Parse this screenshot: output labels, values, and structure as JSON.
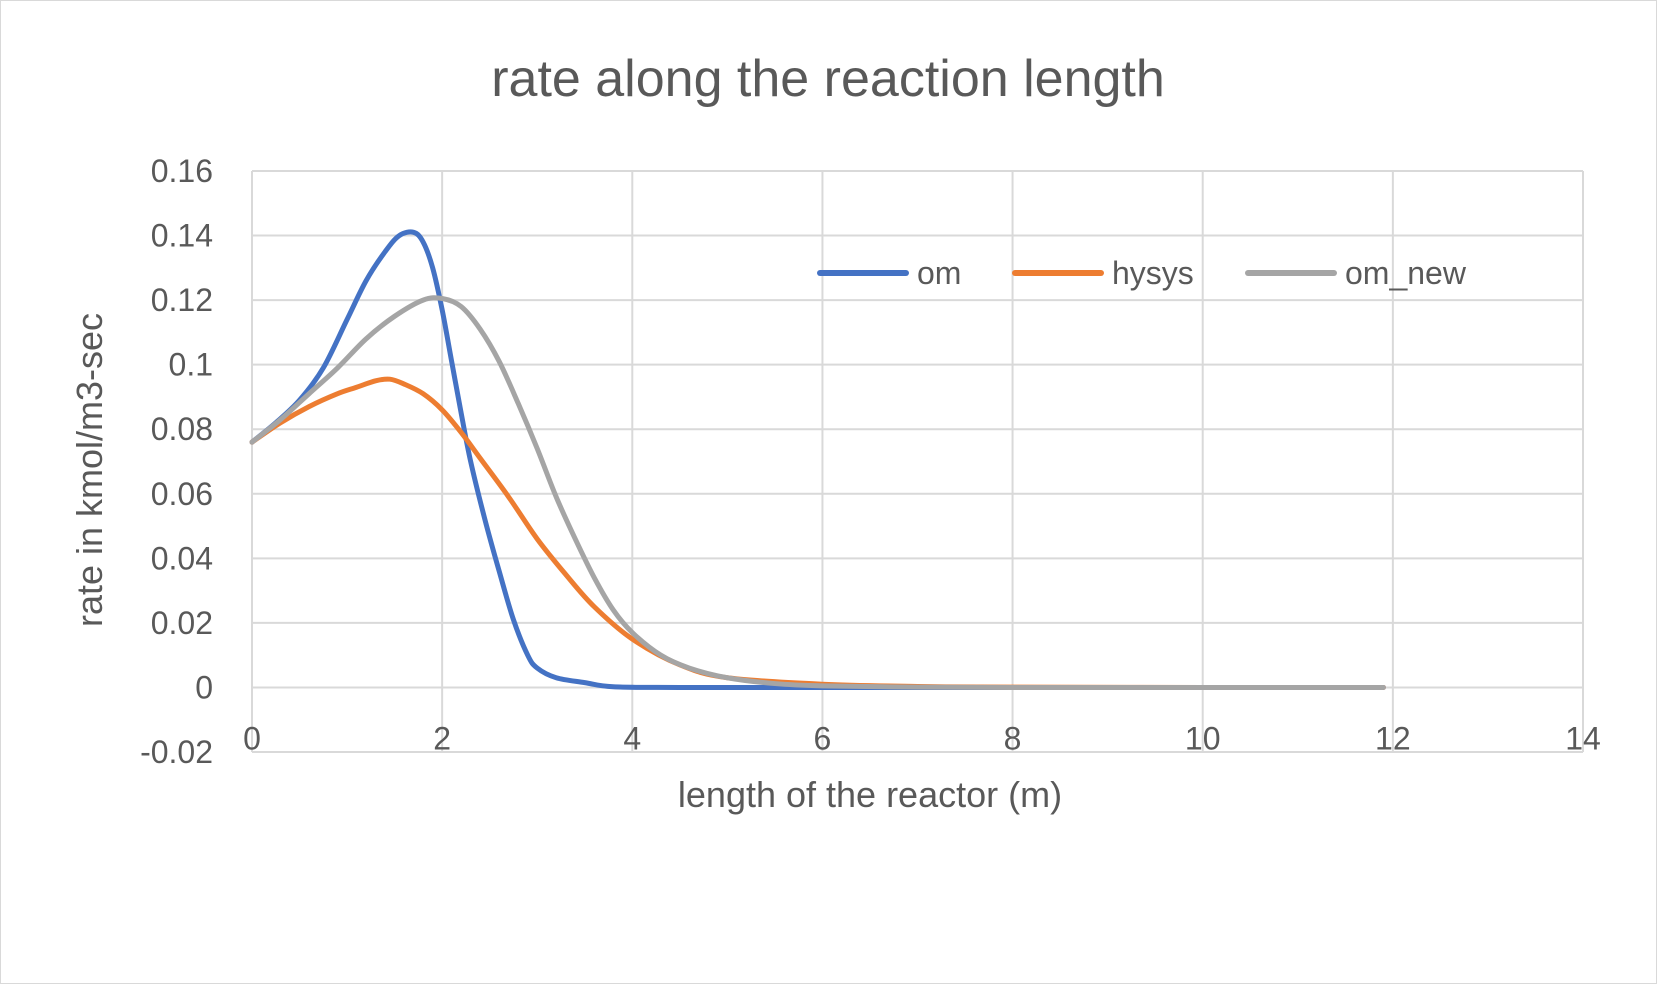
{
  "chart_data": {
    "type": "line",
    "title": "rate along the reaction length",
    "xlabel": "length of the reactor  (m)",
    "ylabel": "rate in kmol/m3-sec",
    "xlim": [
      0,
      14
    ],
    "ylim": [
      -0.02,
      0.16
    ],
    "x_ticks": [
      "0",
      "2",
      "4",
      "6",
      "8",
      "10",
      "12",
      "14"
    ],
    "y_ticks": [
      "0.16",
      "0.14",
      "0.12",
      "0.1",
      "0.08",
      "0.06",
      "0.04",
      "0.02",
      "0",
      "-0.02"
    ],
    "x_tick_values": [
      0,
      2,
      4,
      6,
      8,
      10,
      12,
      14
    ],
    "y_tick_values": [
      0.16,
      0.14,
      0.12,
      0.1,
      0.08,
      0.06,
      0.04,
      0.02,
      0,
      -0.02
    ],
    "grid": true,
    "legend_position": "top-right",
    "series": [
      {
        "name": "om",
        "color": "#4472c4",
        "points": [
          [
            0,
            0.076
          ],
          [
            0.25,
            0.082
          ],
          [
            0.5,
            0.089
          ],
          [
            0.75,
            0.099
          ],
          [
            1.0,
            0.114
          ],
          [
            1.2,
            0.126
          ],
          [
            1.4,
            0.135
          ],
          [
            1.55,
            0.14
          ],
          [
            1.7,
            0.141
          ],
          [
            1.8,
            0.138
          ],
          [
            1.9,
            0.13
          ],
          [
            2.0,
            0.117
          ],
          [
            2.1,
            0.101
          ],
          [
            2.2,
            0.085
          ],
          [
            2.3,
            0.07
          ],
          [
            2.45,
            0.052
          ],
          [
            2.6,
            0.036
          ],
          [
            2.75,
            0.021
          ],
          [
            2.9,
            0.01
          ],
          [
            3.0,
            0.006
          ],
          [
            3.2,
            0.003
          ],
          [
            3.5,
            0.0015
          ],
          [
            3.8,
            0.0002
          ],
          [
            4.5,
            0.0
          ],
          [
            6,
            0.0
          ],
          [
            8,
            0.0
          ],
          [
            10,
            0.0
          ],
          [
            11.9,
            0.0
          ]
        ]
      },
      {
        "name": "hysys",
        "color": "#ed7d31",
        "points": [
          [
            0,
            0.076
          ],
          [
            0.3,
            0.082
          ],
          [
            0.6,
            0.087
          ],
          [
            0.9,
            0.091
          ],
          [
            1.1,
            0.093
          ],
          [
            1.3,
            0.095
          ],
          [
            1.45,
            0.0955
          ],
          [
            1.6,
            0.094
          ],
          [
            1.8,
            0.091
          ],
          [
            2.0,
            0.086
          ],
          [
            2.2,
            0.079
          ],
          [
            2.4,
            0.071
          ],
          [
            2.7,
            0.059
          ],
          [
            3.0,
            0.046
          ],
          [
            3.3,
            0.035
          ],
          [
            3.6,
            0.025
          ],
          [
            4.0,
            0.015
          ],
          [
            4.5,
            0.007
          ],
          [
            5.0,
            0.003
          ],
          [
            6.0,
            0.001
          ],
          [
            7.0,
            0.0003
          ],
          [
            8.0,
            0.0001
          ],
          [
            10,
            0.0
          ],
          [
            11.9,
            0.0
          ]
        ]
      },
      {
        "name": "om_new",
        "color": "#a5a5a5",
        "points": [
          [
            0,
            0.076
          ],
          [
            0.3,
            0.083
          ],
          [
            0.6,
            0.091
          ],
          [
            0.9,
            0.099
          ],
          [
            1.2,
            0.108
          ],
          [
            1.5,
            0.115
          ],
          [
            1.8,
            0.12
          ],
          [
            2.0,
            0.1205
          ],
          [
            2.2,
            0.118
          ],
          [
            2.4,
            0.111
          ],
          [
            2.6,
            0.101
          ],
          [
            2.8,
            0.088
          ],
          [
            3.0,
            0.074
          ],
          [
            3.2,
            0.059
          ],
          [
            3.4,
            0.046
          ],
          [
            3.6,
            0.034
          ],
          [
            3.8,
            0.024
          ],
          [
            4.0,
            0.017
          ],
          [
            4.3,
            0.01
          ],
          [
            4.6,
            0.006
          ],
          [
            5.0,
            0.003
          ],
          [
            5.5,
            0.0012
          ],
          [
            6.0,
            0.0005
          ],
          [
            7.0,
            0.0001
          ],
          [
            8.0,
            0.0
          ],
          [
            10,
            0.0
          ],
          [
            11.9,
            0.0
          ]
        ]
      }
    ]
  }
}
